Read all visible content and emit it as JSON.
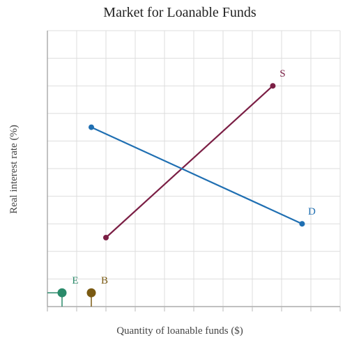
{
  "chart_data": {
    "type": "line",
    "title": "Market for Loanable Funds",
    "xlabel": "Quantity of loanable funds ($)",
    "ylabel": "Real interest rate (%)",
    "xlim": [
      0,
      10
    ],
    "ylim": [
      0,
      10
    ],
    "grid": true,
    "ticks_labeled": false,
    "series": [
      {
        "name": "S",
        "color": "#7b1f45",
        "x": [
          2.0,
          7.7
        ],
        "y": [
          2.5,
          8.0
        ]
      },
      {
        "name": "D",
        "color": "#1f6fb2",
        "x": [
          1.5,
          8.7
        ],
        "y": [
          6.5,
          3.0
        ]
      }
    ],
    "markers": [
      {
        "name": "E",
        "color": "#2a8a6a",
        "x": 0.5,
        "y": 0.5,
        "handle": "left"
      },
      {
        "name": "B",
        "color": "#7a5a12",
        "x": 1.5,
        "y": 0.5,
        "handle": "down"
      }
    ]
  }
}
